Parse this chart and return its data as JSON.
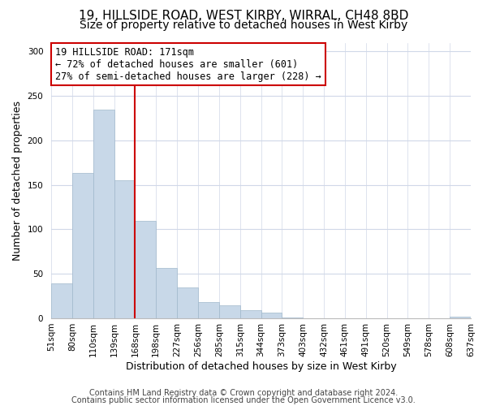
{
  "title": "19, HILLSIDE ROAD, WEST KIRBY, WIRRAL, CH48 8BD",
  "subtitle": "Size of property relative to detached houses in West Kirby",
  "xlabel": "Distribution of detached houses by size in West Kirby",
  "ylabel": "Number of detached properties",
  "bar_values": [
    39,
    163,
    235,
    155,
    110,
    57,
    35,
    18,
    15,
    9,
    6,
    1,
    0,
    0,
    0,
    0,
    0,
    0,
    0,
    2
  ],
  "bar_labels": [
    "51sqm",
    "80sqm",
    "110sqm",
    "139sqm",
    "168sqm",
    "198sqm",
    "227sqm",
    "256sqm",
    "285sqm",
    "315sqm",
    "344sqm",
    "373sqm",
    "403sqm",
    "432sqm",
    "461sqm",
    "491sqm",
    "520sqm",
    "549sqm",
    "578sqm",
    "608sqm",
    "637sqm"
  ],
  "bar_color": "#c8d8e8",
  "bar_edge_color": "#a0b8cc",
  "vline_x": 4,
  "vline_color": "#cc0000",
  "annotation_line1": "19 HILLSIDE ROAD: 171sqm",
  "annotation_line2": "← 72% of detached houses are smaller (601)",
  "annotation_line3": "27% of semi-detached houses are larger (228) →",
  "annotation_box_color": "#ffffff",
  "annotation_box_edge_color": "#cc0000",
  "ylim": [
    0,
    310
  ],
  "yticks": [
    0,
    50,
    100,
    150,
    200,
    250,
    300
  ],
  "footer_line1": "Contains HM Land Registry data © Crown copyright and database right 2024.",
  "footer_line2": "Contains public sector information licensed under the Open Government Licence v3.0.",
  "background_color": "#ffffff",
  "grid_color": "#d0d8e8",
  "title_fontsize": 11,
  "subtitle_fontsize": 10,
  "axis_label_fontsize": 9,
  "tick_fontsize": 7.5,
  "annotation_fontsize": 8.5,
  "footer_fontsize": 7
}
